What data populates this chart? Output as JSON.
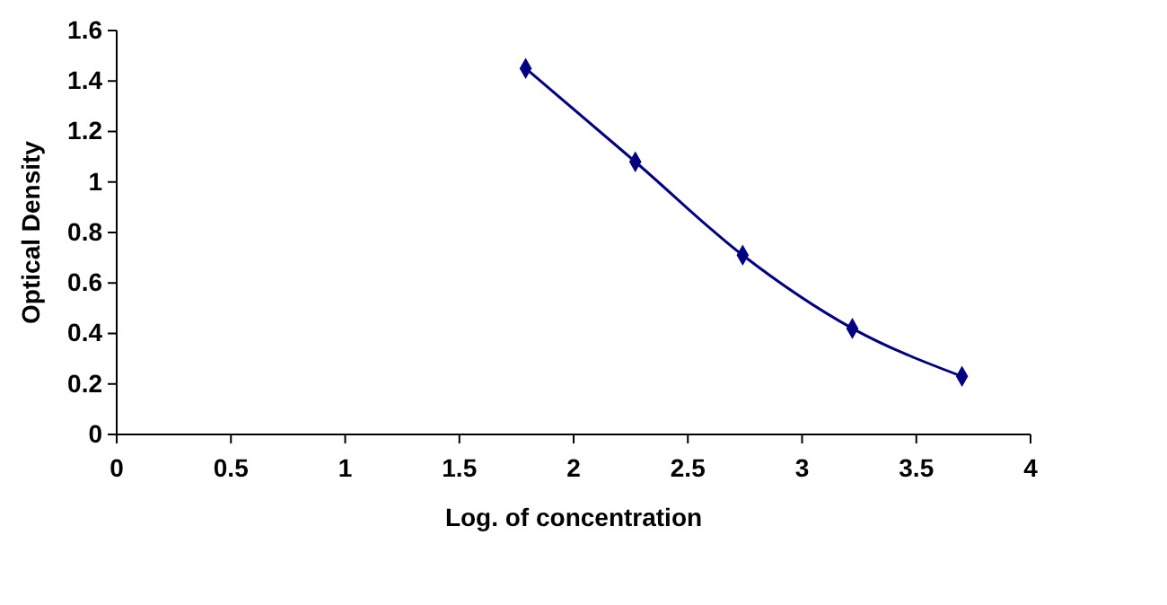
{
  "chart_data": {
    "type": "line",
    "xlabel": "Log. of concentration",
    "ylabel": "Optical Density",
    "x": [
      1.79,
      2.27,
      2.74,
      3.22,
      3.7
    ],
    "series": [
      {
        "color": "#000080",
        "values": [
          1.45,
          1.08,
          0.71,
          0.42,
          0.23
        ]
      }
    ],
    "xlim": [
      0,
      4
    ],
    "xticks": [
      0,
      0.5,
      1,
      1.5,
      2,
      2.5,
      3,
      3.5,
      4
    ],
    "ylim": [
      0,
      1.6
    ],
    "yticks": [
      0,
      0.2,
      0.4,
      0.6,
      0.8,
      1,
      1.2,
      1.4,
      1.6
    ],
    "marker": "diamond",
    "line_style": "solid",
    "grid": false
  }
}
